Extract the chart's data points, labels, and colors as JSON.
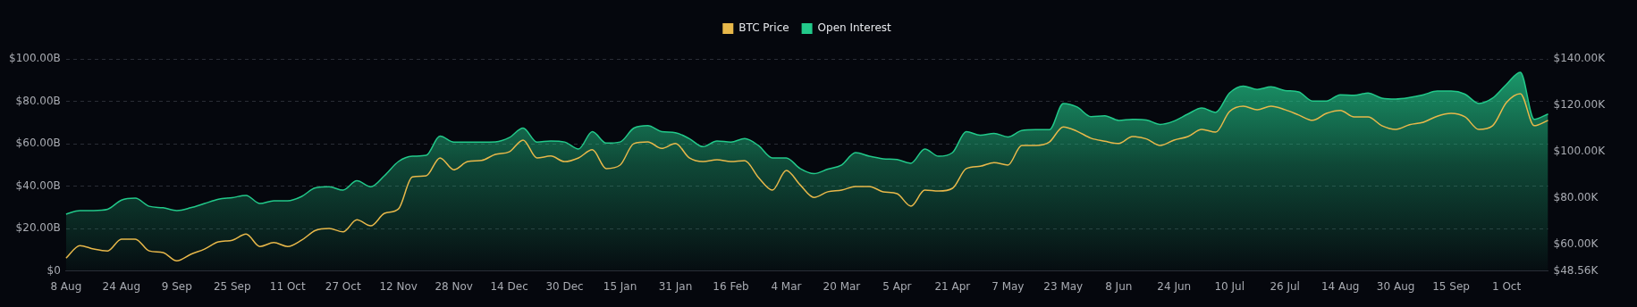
{
  "chart_data": {
    "type": "line",
    "categories": [
      "8 Aug",
      null,
      null,
      null,
      "24 Aug",
      null,
      null,
      null,
      "9 Sep",
      null,
      null,
      null,
      "25 Sep",
      null,
      null,
      null,
      "11 Oct",
      null,
      null,
      null,
      "27 Oct",
      null,
      null,
      null,
      "12 Nov",
      null,
      null,
      null,
      "28 Nov",
      null,
      null,
      null,
      "14 Dec",
      null,
      null,
      null,
      "30 Dec",
      null,
      null,
      null,
      "15 Jan",
      null,
      null,
      null,
      "31 Jan",
      null,
      null,
      null,
      "16 Feb",
      null,
      null,
      null,
      "4 Mar",
      null,
      null,
      null,
      "20 Mar",
      null,
      null,
      null,
      "5 Apr",
      null,
      null,
      null,
      "21 Apr",
      null,
      null,
      null,
      "7 May",
      null,
      null,
      null,
      "23 May",
      null,
      null,
      null,
      "8 Jun",
      null,
      null,
      null,
      "24 Jun",
      null,
      null,
      null,
      "10 Jul",
      null,
      null,
      null,
      "26 Jul",
      null,
      null,
      null,
      "14 Aug",
      null,
      null,
      null,
      "30 Aug",
      null,
      null,
      null,
      "15 Sep",
      null,
      null,
      null,
      "1 Oct",
      null,
      null,
      null
    ],
    "series": [
      {
        "name": "BTC Price",
        "type": "line",
        "axis": "y2",
        "color": "#e8b84a",
        "values": [
          54.1,
          59.5,
          58,
          57.2,
          62.3,
          62.3,
          57.2,
          56.5,
          52.9,
          55.7,
          58,
          61.1,
          61.8,
          64.5,
          59.1,
          60.8,
          59.1,
          61.8,
          66,
          66.9,
          65.4,
          70.6,
          68,
          73.4,
          75.3,
          89.1,
          89.6,
          97.3,
          92.2,
          95.7,
          96.2,
          98.8,
          99.9,
          105,
          97.3,
          98.1,
          95.7,
          97.3,
          100.8,
          92.7,
          94.2,
          103.5,
          104.2,
          101.4,
          103.5,
          97.3,
          95.7,
          96.5,
          95.7,
          96.1,
          88.8,
          83.4,
          91.9,
          85.7,
          80.3,
          82.7,
          83.4,
          85,
          85,
          82.7,
          81.9,
          76.5,
          83.4,
          83,
          84.2,
          92.7,
          93.7,
          95.3,
          94.2,
          102.7,
          102.7,
          104.2,
          110.7,
          108.8,
          105.8,
          104.5,
          103.5,
          106.5,
          105.5,
          102.7,
          105,
          106.5,
          109.6,
          108.4,
          117.3,
          119.6,
          118.1,
          119.6,
          118.1,
          115.8,
          113.5,
          116.5,
          117.8,
          115,
          115,
          111.2,
          109.6,
          111.6,
          112.7,
          115.3,
          116.5,
          115,
          109.6,
          111.2,
          121.2,
          125,
          111.2,
          113.5
        ]
      },
      {
        "name": "Open Interest",
        "type": "area",
        "color": "#22c98a",
        "values": [
          26.8,
          28.5,
          28.5,
          29.1,
          33.4,
          34.3,
          30.5,
          29.8,
          28.5,
          29.8,
          31.8,
          33.8,
          34.6,
          35.6,
          31.8,
          33.1,
          33.1,
          35.1,
          39.2,
          39.7,
          38.1,
          42.5,
          39.7,
          45,
          51.6,
          54.1,
          54.5,
          63.6,
          60.8,
          60.8,
          60.8,
          60.9,
          62.9,
          67.4,
          60.8,
          61.3,
          60.8,
          57.5,
          65.7,
          60.3,
          60.8,
          67.4,
          68.5,
          65.7,
          65.2,
          62.4,
          58.6,
          61.3,
          60.8,
          62.4,
          59.1,
          53.3,
          53.3,
          48.3,
          45.9,
          48,
          50,
          55.8,
          54.1,
          52.9,
          52.5,
          50.8,
          57.5,
          54.1,
          55.8,
          65.7,
          64,
          64.9,
          63.2,
          66.2,
          66.6,
          66.6,
          79,
          77.3,
          72.8,
          73.2,
          71,
          71.5,
          71.2,
          69.1,
          70.7,
          74,
          76.8,
          74.8,
          83.9,
          87.2,
          85.6,
          86.8,
          85.1,
          84.4,
          80.1,
          80.1,
          83.1,
          82.8,
          83.9,
          81.5,
          81.1,
          81.8,
          83.1,
          84.8,
          84.8,
          83.4,
          79,
          81.5,
          88,
          93.7,
          71.5,
          74
        ]
      }
    ],
    "ylim": [
      0,
      100
    ],
    "yticks": [
      {
        "value": 0,
        "label": "$0"
      },
      {
        "value": 20,
        "label": "$20.00B"
      },
      {
        "value": 40,
        "label": "$40.00B"
      },
      {
        "value": 60,
        "label": "$60.00B"
      },
      {
        "value": 80,
        "label": "$80.00B"
      },
      {
        "value": 100,
        "label": "$100.00B"
      }
    ],
    "y2lim": [
      48.56,
      140
    ],
    "y2ticks": [
      {
        "value": 48.56,
        "label": "$48.56K"
      },
      {
        "value": 60,
        "label": "$60.00K"
      },
      {
        "value": 80,
        "label": "$80.00K"
      },
      {
        "value": 100,
        "label": "$100.00K"
      },
      {
        "value": 120,
        "label": "$120.00K"
      },
      {
        "value": 140,
        "label": "$140.00K"
      }
    ],
    "grid": "y",
    "legend": "top",
    "marker": "none",
    "line_style": "solid"
  }
}
